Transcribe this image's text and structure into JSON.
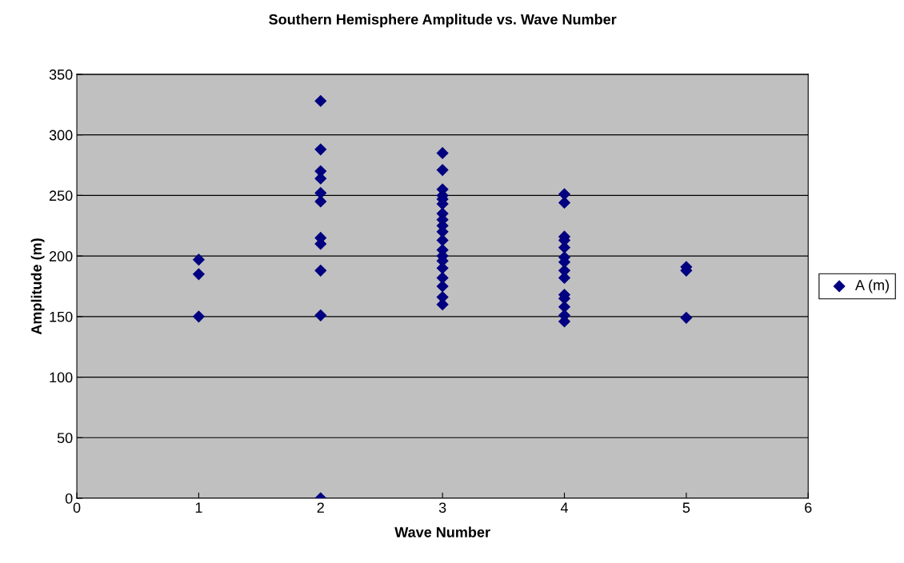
{
  "chart_data": {
    "type": "scatter",
    "title": "Southern Hemisphere Amplitude vs. Wave Number",
    "xlabel": "Wave Number",
    "ylabel": "Amplitude (m)",
    "series": [
      {
        "name": "A (m)",
        "color": "#000080",
        "x": [
          1,
          1,
          1,
          2,
          2,
          2,
          2,
          2,
          2,
          2,
          2,
          2,
          2,
          2,
          3,
          3,
          3,
          3,
          3,
          3,
          3,
          3,
          3,
          3,
          3,
          3,
          3,
          3,
          3,
          3,
          3,
          3,
          3,
          4,
          4,
          4,
          4,
          4,
          4,
          4,
          4,
          4,
          4,
          4,
          4,
          4,
          4,
          5,
          5,
          5
        ],
        "values": [
          197,
          185,
          150,
          328,
          288,
          270,
          264,
          252,
          245,
          215,
          210,
          188,
          151,
          0,
          285,
          271,
          255,
          250,
          247,
          243,
          235,
          230,
          225,
          220,
          213,
          205,
          200,
          196,
          190,
          182,
          175,
          166,
          160,
          251,
          244,
          216,
          213,
          207,
          199,
          195,
          188,
          182,
          168,
          165,
          158,
          151,
          146,
          191,
          188,
          149
        ]
      }
    ],
    "xlim": [
      0,
      6
    ],
    "xticks": [
      0,
      1,
      2,
      3,
      4,
      5,
      6
    ],
    "ylim": [
      0,
      350
    ],
    "yticks": [
      0,
      50,
      100,
      150,
      200,
      250,
      300,
      350
    ],
    "grid": "y",
    "legend": "right",
    "marker": "diamond"
  }
}
